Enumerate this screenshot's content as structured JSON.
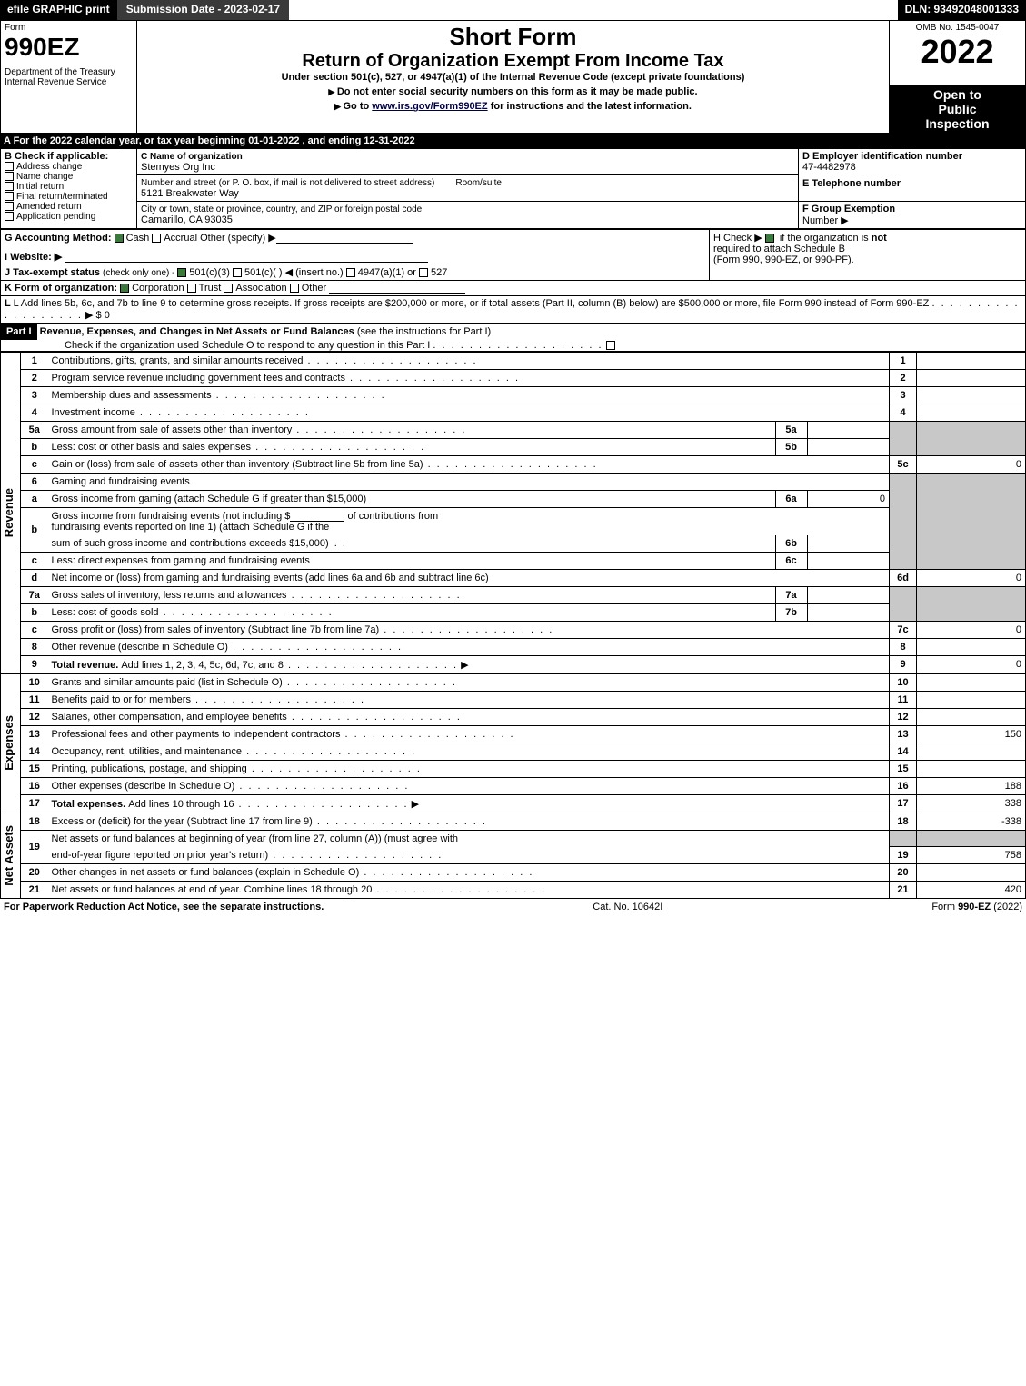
{
  "topbar": {
    "efile": "efile GRAPHIC print",
    "submission": "Submission Date - 2023-02-17",
    "dln": "DLN: 93492048001333"
  },
  "header": {
    "form_word": "Form",
    "form_no": "990EZ",
    "dept": "Department of the Treasury",
    "irs": "Internal Revenue Service",
    "short": "Short Form",
    "return": "Return of Organization Exempt From Income Tax",
    "under": "Under section 501(c), 527, or 4947(a)(1) of the Internal Revenue Code (except private foundations)",
    "warn": "Do not enter social security numbers on this form as it may be made public.",
    "goto_pre": "Go to ",
    "goto_link": "www.irs.gov/Form990EZ",
    "goto_post": " for instructions and the latest information.",
    "omb": "OMB No. 1545-0047",
    "year": "2022",
    "open1": "Open to",
    "open2": "Public",
    "open3": "Inspection"
  },
  "secA": "A  For the 2022 calendar year, or tax year beginning 01-01-2022  , and ending 12-31-2022",
  "B": {
    "title": "B  Check if applicable:",
    "items": [
      "Address change",
      "Name change",
      "Initial return",
      "Final return/terminated",
      "Amended return",
      "Application pending"
    ]
  },
  "C": {
    "label": "C Name of organization",
    "name": "Stemyes Org Inc",
    "street_label": "Number and street (or P. O. box, if mail is not delivered to street address)",
    "room": "Room/suite",
    "street": "5121 Breakwater Way",
    "city_label": "City or town, state or province, country, and ZIP or foreign postal code",
    "city": "Camarillo, CA  93035"
  },
  "D": {
    "label": "D Employer identification number",
    "val": "47-4482978"
  },
  "E": {
    "label": "E Telephone number"
  },
  "F": {
    "label": "F Group Exemption",
    "label2": "Number   ▶"
  },
  "G": {
    "label": "G Accounting Method:",
    "cash": "Cash",
    "accr": "Accrual",
    "other": "Other (specify) ▶"
  },
  "H": {
    "pre": "H   Check ▶ ",
    "post1": " if the organization is ",
    "not": "not",
    "post2": "required to attach Schedule B",
    "post3": "(Form 990, 990-EZ, or 990-PF)."
  },
  "I": {
    "label": "I Website: ▶"
  },
  "J": {
    "pre": "J Tax-exempt status ",
    "sub": "(check only one) - ",
    "c3": "501(c)(3)",
    "c": "501(c)(   ) ◀ (insert no.)",
    "a1": "4947(a)(1) or",
    "s527": "527"
  },
  "K": {
    "pre": "K Form of organization:",
    "corp": "Corporation",
    "trust": "Trust",
    "assoc": "Association",
    "other": "Other"
  },
  "L": {
    "pre": "L Add lines 5b, 6c, and 7b to line 9 to determine gross receipts. If gross receipts are $200,000 or more, or if total assets (Part II, column (B) below) are $500,000 or more, file Form 990 instead of Form 990-EZ",
    "arrow": "▶ $ 0"
  },
  "part1": {
    "label": "Part I",
    "title": "Revenue, Expenses, and Changes in Net Assets or Fund Balances ",
    "see": "(see the instructions for Part I)",
    "check": "Check if the organization used Schedule O to respond to any question in this Part I"
  },
  "lines": {
    "1": "Contributions, gifts, grants, and similar amounts received",
    "2": "Program service revenue including government fees and contracts",
    "3": "Membership dues and assessments",
    "4": "Investment income",
    "5a": "Gross amount from sale of assets other than inventory",
    "5b": "Less: cost or other basis and sales expenses",
    "5c": "Gain or (loss) from sale of assets other than inventory (Subtract line 5b from line 5a)",
    "6": "Gaming and fundraising events",
    "6a": "Gross income from gaming (attach Schedule G if greater than $15,000)",
    "6b_pre": "Gross income from fundraising events (not including $",
    "6b_mid": "of contributions from",
    "6b_2": "fundraising events reported on line 1) (attach Schedule G if the",
    "6b_3": "sum of such gross income and contributions exceeds $15,000)",
    "6c": "Less: direct expenses from gaming and fundraising events",
    "6d": "Net income or (loss) from gaming and fundraising events (add lines 6a and 6b and subtract line 6c)",
    "7a": "Gross sales of inventory, less returns and allowances",
    "7b": "Less: cost of goods sold",
    "7c": "Gross profit or (loss) from sales of inventory (Subtract line 7b from line 7a)",
    "8": "Other revenue (describe in Schedule O)",
    "9_pre": "Total revenue. ",
    "9": "Add lines 1, 2, 3, 4, 5c, 6d, 7c, and 8",
    "10": "Grants and similar amounts paid (list in Schedule O)",
    "11": "Benefits paid to or for members",
    "12": "Salaries, other compensation, and employee benefits",
    "13": "Professional fees and other payments to independent contractors",
    "14": "Occupancy, rent, utilities, and maintenance",
    "15": "Printing, publications, postage, and shipping",
    "16": "Other expenses (describe in Schedule O)",
    "17_pre": "Total expenses. ",
    "17": "Add lines 10 through 16",
    "18": "Excess or (deficit) for the year (Subtract line 17 from line 9)",
    "19a": "Net assets or fund balances at beginning of year (from line 27, column (A)) (must agree with",
    "19b": "end-of-year figure reported on prior year's return)",
    "20": "Other changes in net assets or fund balances (explain in Schedule O)",
    "21": "Net assets or fund balances at end of year. Combine lines 18 through 20"
  },
  "amounts": {
    "5c": "0",
    "6a_side": "0",
    "6d": "0",
    "7c": "0",
    "9": "0",
    "13": "150",
    "16": "188",
    "17": "338",
    "18": "-338",
    "19": "758",
    "21": "420"
  },
  "vlabels": {
    "rev": "Revenue",
    "exp": "Expenses",
    "net": "Net Assets"
  },
  "footer": {
    "left": "For Paperwork Reduction Act Notice, see the separate instructions.",
    "cat": "Cat. No. 10642I",
    "right_pre": "Form ",
    "right_b": "990-EZ",
    "right_post": " (2022)"
  }
}
